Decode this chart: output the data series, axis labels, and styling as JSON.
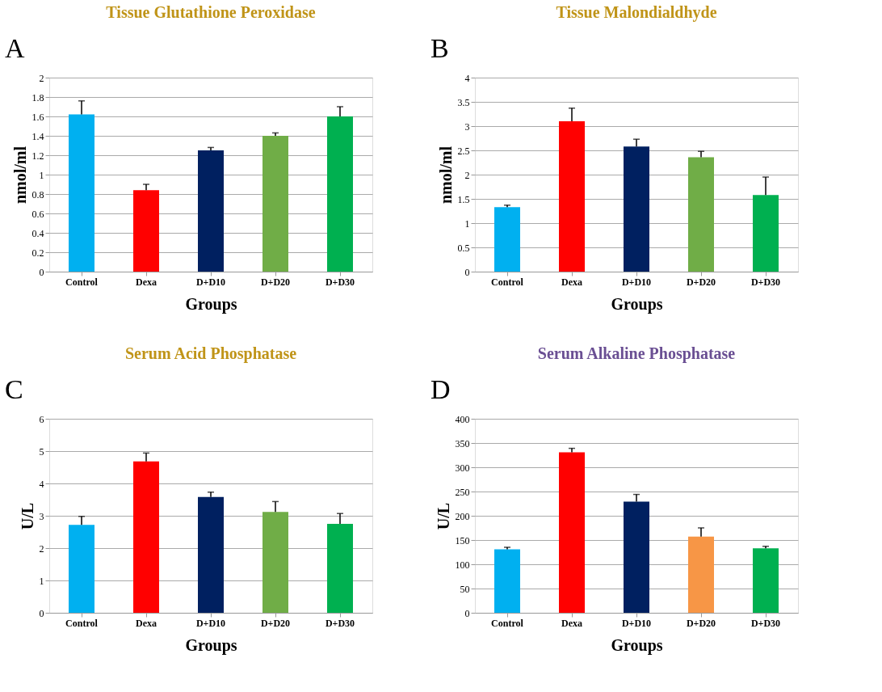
{
  "chart_data": [
    {
      "type": "bar",
      "title": "Tissue Glutathione Peroxidase",
      "xlabel": "Groups",
      "ylabel": "nmol/ml",
      "annotations": [
        "A"
      ],
      "categories": [
        "Control",
        "Dexa",
        "D+D10",
        "D+D20",
        "D+D30"
      ],
      "values": [
        1.62,
        0.84,
        1.25,
        1.4,
        1.6
      ],
      "colors": [
        "#00b0f0",
        "#ff0000",
        "#002060",
        "#70ad47",
        "#00b050"
      ],
      "errors": [
        [
          1.62,
          1.76
        ],
        [
          0.84,
          0.9
        ],
        [
          1.25,
          1.28
        ],
        [
          1.4,
          1.43
        ],
        [
          1.6,
          1.7
        ]
      ],
      "ylim": [
        0,
        2
      ],
      "yticks": [
        0,
        0.2,
        0.4,
        0.6,
        0.8,
        1,
        1.2,
        1.4,
        1.6,
        1.8,
        2
      ],
      "grid": "y",
      "legend": false
    },
    {
      "type": "bar",
      "title": "Tissue Malondialdhyde",
      "xlabel": "Groups",
      "ylabel": "nmol/ml",
      "annotations": [
        "B"
      ],
      "categories": [
        "Control",
        "Dexa",
        "D+D10",
        "D+D20",
        "D+D30"
      ],
      "values": [
        1.33,
        3.1,
        2.58,
        2.36,
        1.58
      ],
      "colors": [
        "#00b0f0",
        "#ff0000",
        "#002060",
        "#70ad47",
        "#00b050"
      ],
      "errors": [
        [
          1.33,
          1.37
        ],
        [
          3.1,
          3.37
        ],
        [
          2.58,
          2.73
        ],
        [
          2.36,
          2.48
        ],
        [
          1.58,
          1.95
        ]
      ],
      "ylim": [
        0,
        4
      ],
      "yticks": [
        0,
        0.5,
        1,
        1.5,
        2,
        2.5,
        3,
        3.5,
        4
      ],
      "grid": "y",
      "legend": false
    },
    {
      "type": "bar",
      "title": "Serum Acid Phosphatase",
      "xlabel": "Groups",
      "ylabel": "U/L",
      "annotations": [
        "C"
      ],
      "categories": [
        "Control",
        "Dexa",
        "D+D10",
        "D+D20",
        "D+D30"
      ],
      "values": [
        2.72,
        4.68,
        3.58,
        3.12,
        2.75
      ],
      "colors": [
        "#00b0f0",
        "#ff0000",
        "#002060",
        "#70ad47",
        "#00b050"
      ],
      "errors": [
        [
          2.72,
          2.98
        ],
        [
          4.68,
          4.94
        ],
        [
          3.58,
          3.73
        ],
        [
          3.12,
          3.44
        ],
        [
          2.75,
          3.07
        ]
      ],
      "ylim": [
        0,
        6
      ],
      "yticks": [
        0,
        1,
        2,
        3,
        4,
        5,
        6
      ],
      "grid": "y",
      "legend": false
    },
    {
      "type": "bar",
      "title": "Serum Alkaline Phosphatase",
      "xlabel": "Groups",
      "ylabel": "U/L",
      "annotations": [
        "D"
      ],
      "categories": [
        "Control",
        "Dexa",
        "D+D10",
        "D+D20",
        "D+D30"
      ],
      "values": [
        131,
        331,
        229,
        157,
        133
      ],
      "colors": [
        "#00b0f0",
        "#ff0000",
        "#002060",
        "#f79646",
        "#00b050"
      ],
      "errors": [
        [
          131,
          135
        ],
        [
          331,
          339
        ],
        [
          229,
          244
        ],
        [
          157,
          175
        ],
        [
          133,
          137
        ]
      ],
      "ylim": [
        0,
        400
      ],
      "yticks": [
        0,
        50,
        100,
        150,
        200,
        250,
        300,
        350,
        400
      ],
      "grid": "y",
      "legend": false
    }
  ]
}
